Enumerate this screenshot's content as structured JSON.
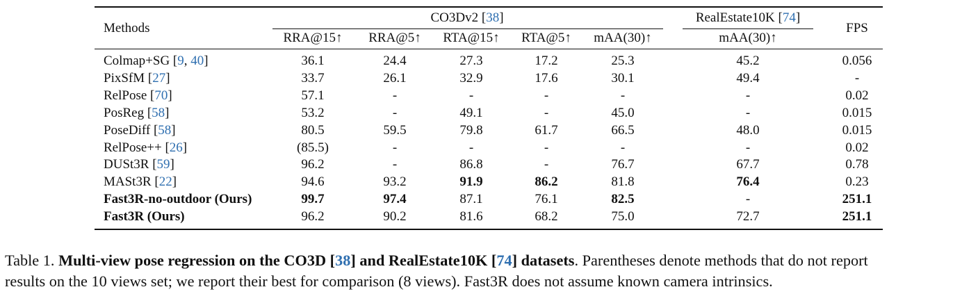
{
  "table": {
    "header": {
      "methods": "Methods",
      "group_co3d": {
        "name": "CO3Dv2",
        "cite": "38"
      },
      "group_re10k": {
        "name": "RealEstate10K",
        "cite": "74"
      },
      "fps": "FPS",
      "subcols": [
        "RRA@15↑",
        "RRA@5↑",
        "RTA@15↑",
        "RTA@5↑",
        "mAA(30)↑",
        "mAA(30)↑"
      ]
    },
    "rows": [
      {
        "name": "Colmap+SG",
        "cites": [
          "9",
          "40"
        ],
        "bold_name": false,
        "values": [
          "36.1",
          "24.4",
          "27.3",
          "17.2",
          "25.3",
          "45.2",
          "0.056"
        ],
        "bold": [
          false,
          false,
          false,
          false,
          false,
          false,
          false
        ]
      },
      {
        "name": "PixSfM",
        "cites": [
          "27"
        ],
        "bold_name": false,
        "values": [
          "33.7",
          "26.1",
          "32.9",
          "17.6",
          "30.1",
          "49.4",
          "-"
        ],
        "bold": [
          false,
          false,
          false,
          false,
          false,
          false,
          false
        ]
      },
      {
        "name": "RelPose",
        "cites": [
          "70"
        ],
        "bold_name": false,
        "values": [
          "57.1",
          "-",
          "-",
          "-",
          "-",
          "-",
          "0.02"
        ],
        "bold": [
          false,
          false,
          false,
          false,
          false,
          false,
          false
        ]
      },
      {
        "name": "PosReg",
        "cites": [
          "58"
        ],
        "bold_name": false,
        "values": [
          "53.2",
          "-",
          "49.1",
          "-",
          "45.0",
          "-",
          "0.015"
        ],
        "bold": [
          false,
          false,
          false,
          false,
          false,
          false,
          false
        ]
      },
      {
        "name": "PoseDiff",
        "cites": [
          "58"
        ],
        "bold_name": false,
        "values": [
          "80.5",
          "59.5",
          "79.8",
          "61.7",
          "66.5",
          "48.0",
          "0.015"
        ],
        "bold": [
          false,
          false,
          false,
          false,
          false,
          false,
          false
        ]
      },
      {
        "name": "RelPose++",
        "cites": [
          "26"
        ],
        "bold_name": false,
        "values": [
          "(85.5)",
          "-",
          "-",
          "-",
          "-",
          "-",
          "0.02"
        ],
        "bold": [
          false,
          false,
          false,
          false,
          false,
          false,
          false
        ]
      },
      {
        "name": "DUSt3R",
        "cites": [
          "59"
        ],
        "bold_name": false,
        "values": [
          "96.2",
          "-",
          "86.8",
          "-",
          "76.7",
          "67.7",
          "0.78"
        ],
        "bold": [
          false,
          false,
          false,
          false,
          false,
          false,
          false
        ]
      },
      {
        "name": "MASt3R",
        "cites": [
          "22"
        ],
        "bold_name": false,
        "values": [
          "94.6",
          "93.2",
          "91.9",
          "86.2",
          "81.8",
          "76.4",
          "0.23"
        ],
        "bold": [
          false,
          false,
          true,
          true,
          false,
          true,
          false
        ]
      },
      {
        "name": "Fast3R-no-outdoor (Ours)",
        "cites": [],
        "bold_name": true,
        "values": [
          "99.7",
          "97.4",
          "87.1",
          "76.1",
          "82.5",
          "-",
          "251.1"
        ],
        "bold": [
          true,
          true,
          false,
          false,
          true,
          false,
          true
        ]
      },
      {
        "name": "Fast3R (Ours)",
        "cites": [],
        "bold_name": true,
        "values": [
          "96.2",
          "90.2",
          "81.6",
          "68.2",
          "75.0",
          "72.7",
          "251.1"
        ],
        "bold": [
          false,
          false,
          false,
          false,
          false,
          false,
          true
        ]
      }
    ]
  },
  "caption": {
    "label": "Table 1.",
    "title_pre": "Multi-view pose regression on the CO3D [",
    "cite1": "38",
    "title_mid": "] and RealEstate10K [",
    "cite2": "74",
    "title_post": "] datasets",
    "line1_rest": ". Parentheses denote methods that do not report",
    "line2": "results on the 10 views set; we report their best for comparison (8 views). Fast3R does not assume known camera intrinsics."
  }
}
